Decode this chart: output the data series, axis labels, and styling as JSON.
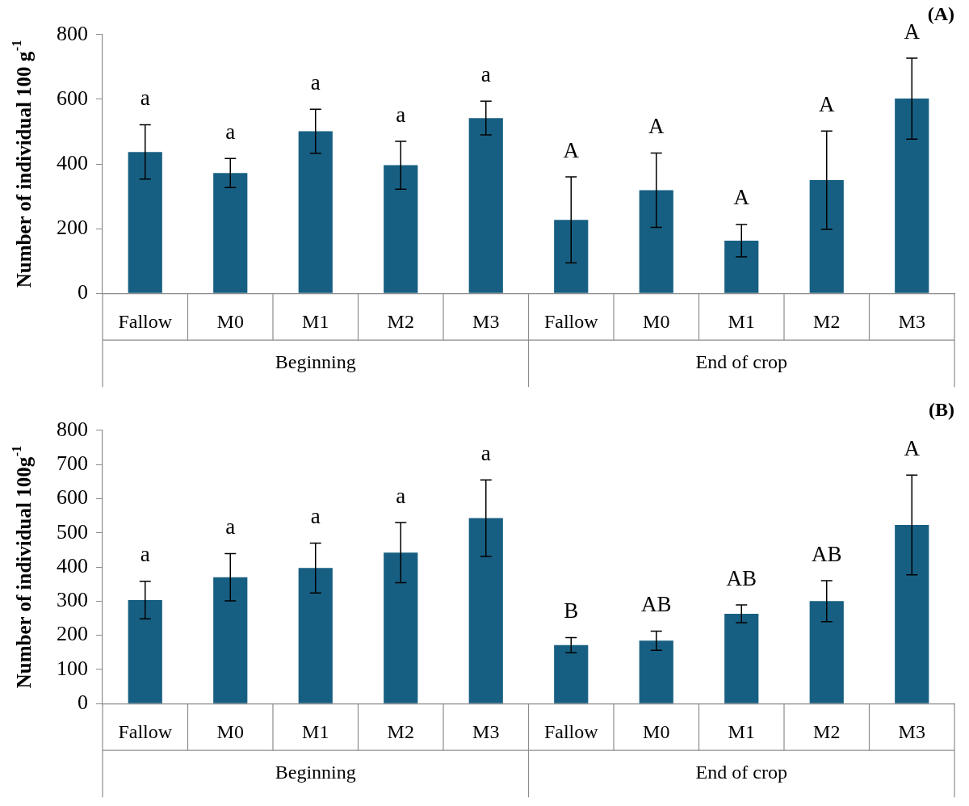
{
  "chart_data": [
    {
      "type": "bar",
      "title": "(A)",
      "ylabel": "Number of individual 100 g$^{-1}$",
      "categories": [
        "Fallow",
        "M0",
        "M1",
        "M2",
        "M3",
        "Fallow",
        "M0",
        "M1",
        "M2",
        "M3"
      ],
      "values": [
        437,
        372,
        501,
        396,
        542,
        227,
        319,
        163,
        350,
        602
      ],
      "errors": [
        84,
        45,
        68,
        74,
        52,
        133,
        115,
        50,
        152,
        125
      ],
      "value_labels": [
        "a",
        "a",
        "a",
        "a",
        "a",
        "A",
        "A",
        "A",
        "A",
        "A"
      ],
      "color": "#175f82",
      "ylim": [
        0,
        800
      ],
      "yticks": [
        0,
        200,
        400,
        600,
        800
      ],
      "annotations": [
        "Beginning",
        "End of crop"
      ]
    },
    {
      "type": "bar",
      "title": "(B)",
      "ylabel": "Number of individual 100g$^{-1}$",
      "categories": [
        "Fallow",
        "M0",
        "M1",
        "M2",
        "M3",
        "Fallow",
        "M0",
        "M1",
        "M2",
        "M3"
      ],
      "values": [
        303,
        370,
        397,
        442,
        543,
        171,
        184,
        263,
        300,
        523
      ],
      "errors": [
        55,
        69,
        73,
        88,
        112,
        22,
        28,
        26,
        60,
        146
      ],
      "value_labels": [
        "a",
        "a",
        "a",
        "a",
        "a",
        "B",
        "AB",
        "AB",
        "AB",
        "A"
      ],
      "color": "#175f82",
      "ylim": [
        0,
        800
      ],
      "yticks": [
        0,
        100,
        200,
        300,
        400,
        500,
        600,
        700,
        800
      ],
      "annotations": [
        "Beginning",
        "End of crop"
      ]
    }
  ]
}
